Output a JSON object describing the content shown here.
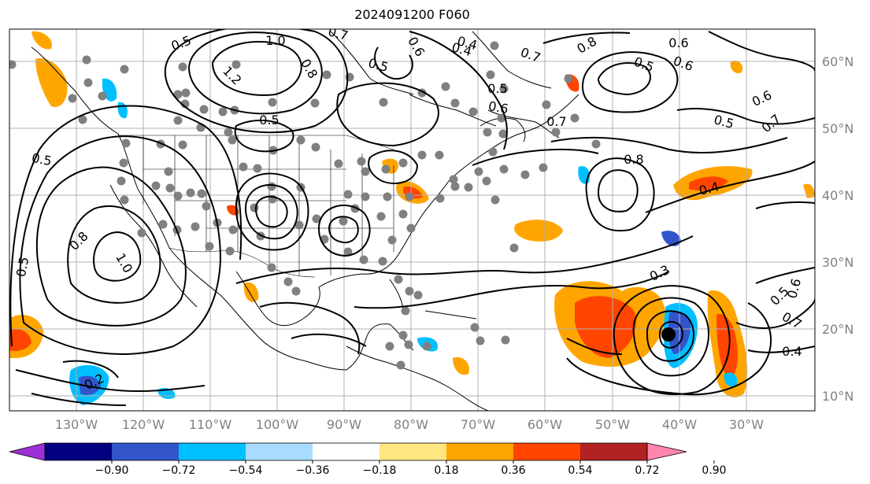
{
  "map": {
    "title": "2024091200 F060",
    "lon_ticks": [
      "130°W",
      "120°W",
      "110°W",
      "100°W",
      "90°W",
      "80°W",
      "70°W",
      "60°W",
      "50°W",
      "40°W",
      "30°W"
    ],
    "lat_ticks": [
      "60°N",
      "50°N",
      "40°N",
      "30°N",
      "20°N",
      "10°N"
    ],
    "contour_labels": [
      "0.5",
      "1.0",
      "0.7",
      "0.4",
      "0.7",
      "0.8",
      "0.6",
      "0.5",
      "0.6",
      "0.7",
      "0.5",
      "0.6",
      "0.8",
      "0.6",
      "0.5",
      "0.5",
      "1.2",
      "0.8",
      "0.5",
      "0.6",
      "0.5",
      "0.7",
      "0.8",
      "1.0",
      "0.5",
      "0.2",
      "0.3",
      "0.4",
      "0.4",
      "0.5",
      "0.6",
      "0.7",
      "0.4"
    ],
    "colors": {
      "grid": "#b0b0b0",
      "contour": "#000000",
      "marker": "#808080",
      "storm_marker": "#000000"
    }
  },
  "colorbar": {
    "tick_labels": [
      "−0.90",
      "−0.72",
      "−0.54",
      "−0.36",
      "−0.18",
      "0.18",
      "0.36",
      "0.54",
      "0.72",
      "0.90"
    ],
    "colors": [
      "#9b30d6",
      "#000080",
      "#3355cc",
      "#00bfff",
      "#a8dcff",
      "#ffffff",
      "#ffe680",
      "#ffa500",
      "#ff4500",
      "#b22222",
      "#ff85b0"
    ]
  }
}
